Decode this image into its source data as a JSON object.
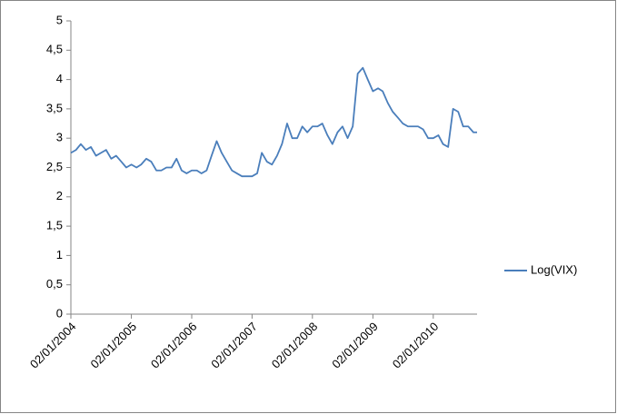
{
  "chart_data": {
    "type": "line",
    "x": [
      "02/01/2004",
      "02/02/2004",
      "02/03/2004",
      "02/04/2004",
      "02/05/2004",
      "02/06/2004",
      "02/07/2004",
      "02/08/2004",
      "02/09/2004",
      "02/10/2004",
      "02/11/2004",
      "02/12/2004",
      "02/01/2005",
      "02/02/2005",
      "02/03/2005",
      "02/04/2005",
      "02/05/2005",
      "02/06/2005",
      "02/07/2005",
      "02/08/2005",
      "02/09/2005",
      "02/10/2005",
      "02/11/2005",
      "02/12/2005",
      "02/01/2006",
      "02/02/2006",
      "02/03/2006",
      "02/04/2006",
      "02/05/2006",
      "02/06/2006",
      "02/07/2006",
      "02/08/2006",
      "02/09/2006",
      "02/10/2006",
      "02/11/2006",
      "02/12/2006",
      "02/01/2007",
      "02/02/2007",
      "02/03/2007",
      "02/04/2007",
      "02/05/2007",
      "02/06/2007",
      "02/07/2007",
      "02/08/2007",
      "02/09/2007",
      "02/10/2007",
      "02/11/2007",
      "02/12/2007",
      "02/01/2008",
      "02/02/2008",
      "02/03/2008",
      "02/04/2008",
      "02/05/2008",
      "02/06/2008",
      "02/07/2008",
      "02/08/2008",
      "02/09/2008",
      "02/10/2008",
      "02/11/2008",
      "02/12/2008",
      "02/01/2009",
      "02/02/2009",
      "02/03/2009",
      "02/04/2009",
      "02/05/2009",
      "02/06/2009",
      "02/07/2009",
      "02/08/2009",
      "02/09/2009",
      "02/10/2009",
      "02/11/2009",
      "02/12/2009",
      "02/01/2010",
      "02/02/2010",
      "02/03/2010",
      "02/04/2010",
      "02/05/2010",
      "02/06/2010",
      "02/07/2010",
      "02/08/2010",
      "02/09/2010",
      "24/09/2010"
    ],
    "series": [
      {
        "name": "Log(VIX)",
        "color": "#4a7ebb",
        "values": [
          2.75,
          2.8,
          2.9,
          2.8,
          2.85,
          2.7,
          2.75,
          2.8,
          2.65,
          2.7,
          2.6,
          2.5,
          2.55,
          2.5,
          2.55,
          2.65,
          2.6,
          2.45,
          2.45,
          2.5,
          2.5,
          2.65,
          2.45,
          2.4,
          2.45,
          2.45,
          2.4,
          2.45,
          2.7,
          2.95,
          2.75,
          2.6,
          2.45,
          2.4,
          2.35,
          2.35,
          2.35,
          2.4,
          2.75,
          2.6,
          2.55,
          2.7,
          2.9,
          3.25,
          3.0,
          3.0,
          3.2,
          3.1,
          3.2,
          3.2,
          3.25,
          3.05,
          2.9,
          3.1,
          3.2,
          3.0,
          3.2,
          4.1,
          4.2,
          4.0,
          3.8,
          3.85,
          3.8,
          3.6,
          3.45,
          3.35,
          3.25,
          3.2,
          3.2,
          3.2,
          3.15,
          3.0,
          3.0,
          3.05,
          2.9,
          2.85,
          3.5,
          3.45,
          3.2,
          3.2,
          3.1,
          3.1
        ]
      }
    ],
    "xlim": [
      "02/01/2004",
      "24/09/2010"
    ],
    "xticks": [
      "02/01/2004",
      "02/01/2005",
      "02/01/2006",
      "02/01/2007",
      "02/01/2008",
      "02/01/2009",
      "02/01/2010"
    ],
    "ylim": [
      0,
      5
    ],
    "yticks": [
      0,
      {
        "value": 0.5,
        "label": "0,5"
      },
      1,
      {
        "value": 1.5,
        "label": "1,5"
      },
      2,
      {
        "value": 2.5,
        "label": "2,5"
      },
      3,
      {
        "value": 3.5,
        "label": "3,5"
      },
      4,
      {
        "value": 4.5,
        "label": "4,5"
      },
      5
    ],
    "legend": "right"
  }
}
